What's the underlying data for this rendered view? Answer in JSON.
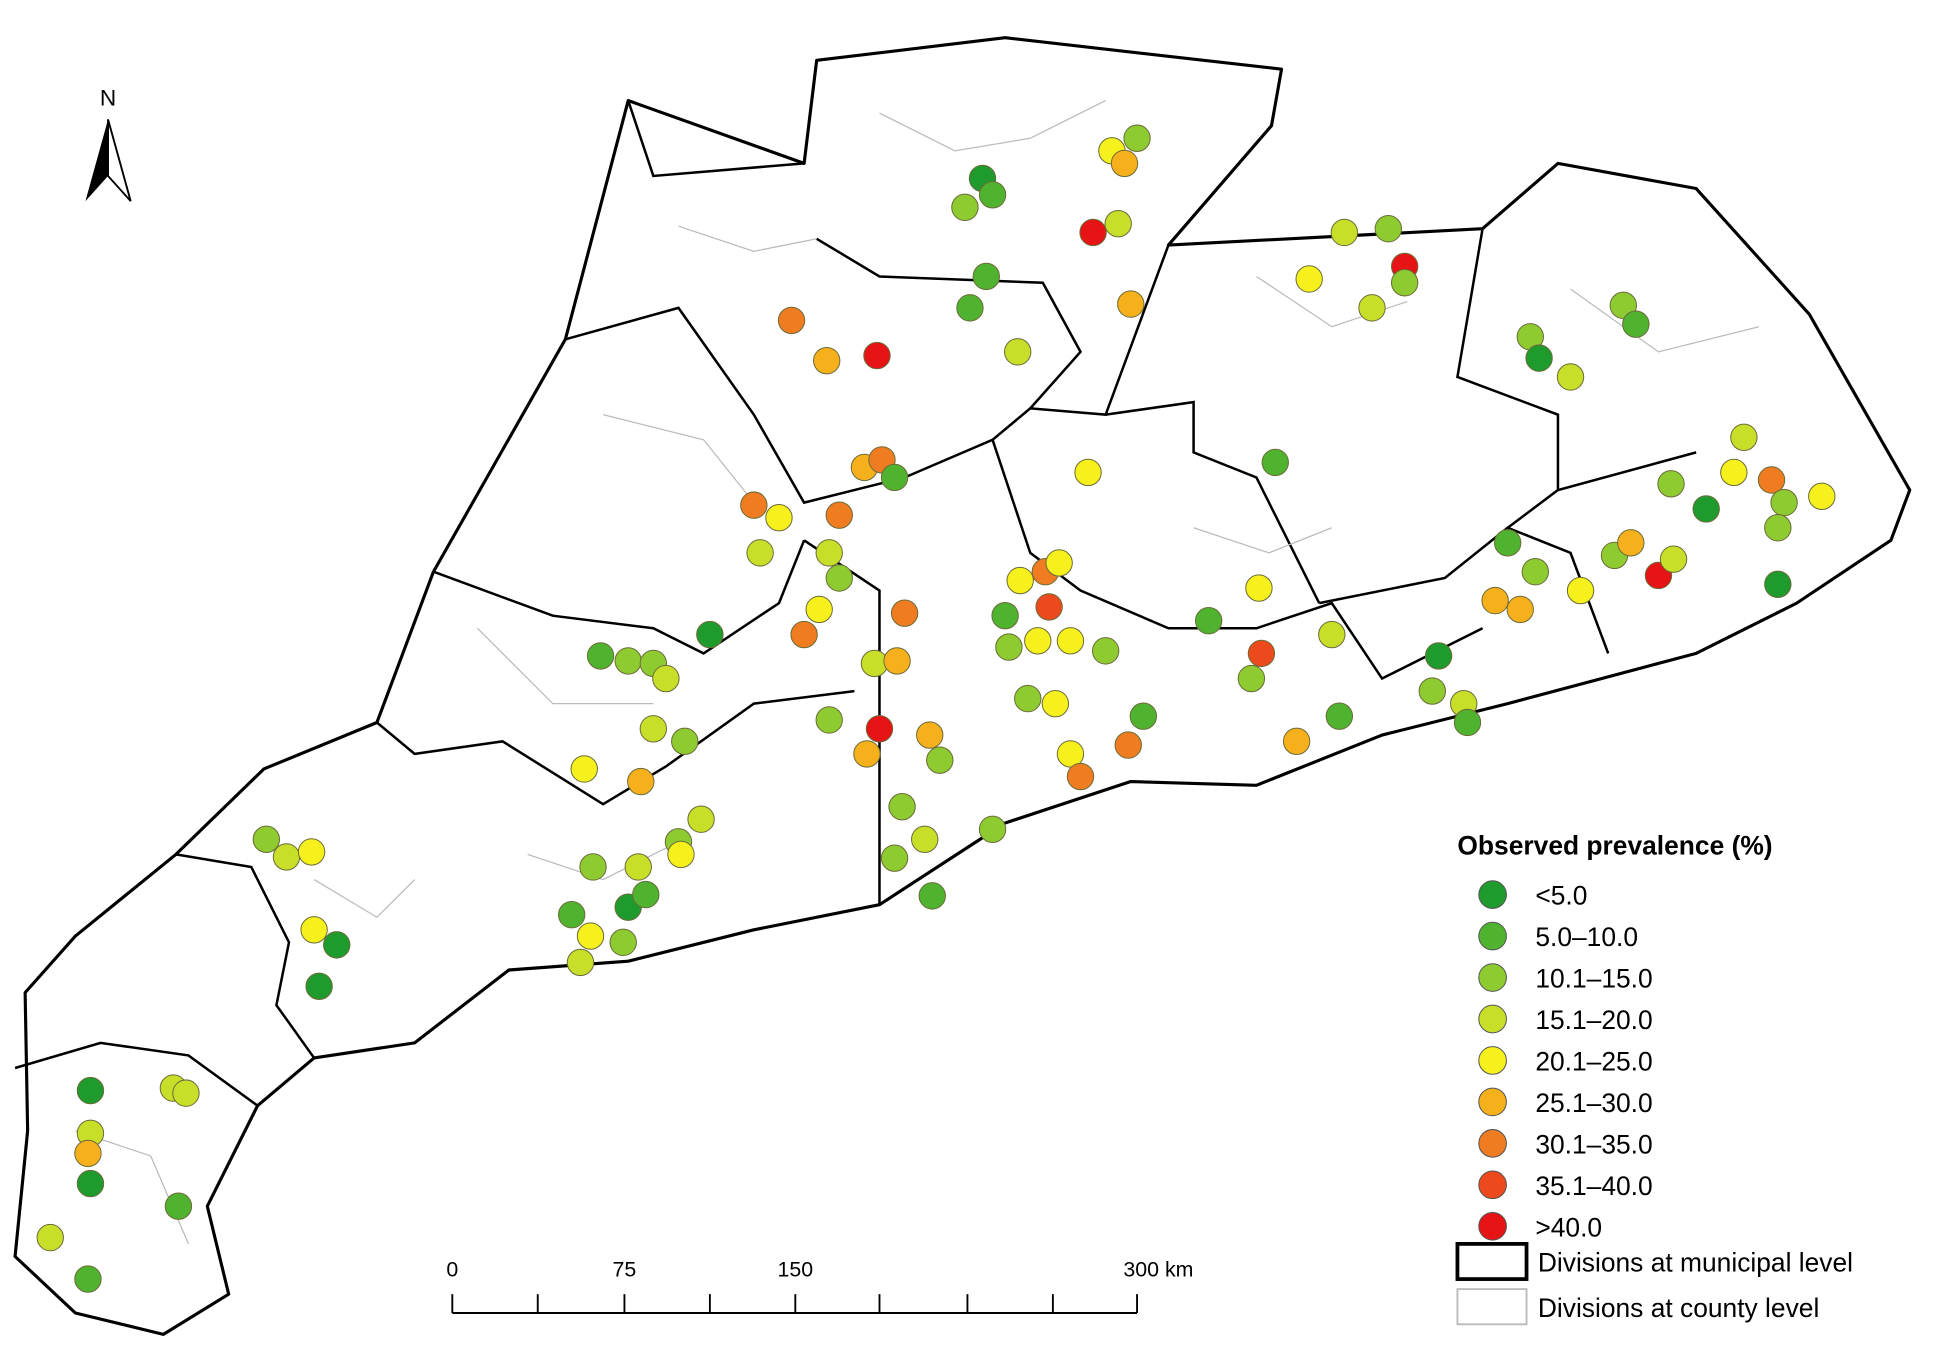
{
  "map": {
    "north": "N",
    "legend": {
      "title": "Observed prevalence (%)",
      "items": [
        {
          "label": "<5.0",
          "color": "#1f9a2c"
        },
        {
          "label": "5.0–10.0",
          "color": "#4fb32f"
        },
        {
          "label": "10.1–15.0",
          "color": "#8dcb30"
        },
        {
          "label": "15.1–20.0",
          "color": "#c8df2a"
        },
        {
          "label": "20.1–25.0",
          "color": "#f6f01c"
        },
        {
          "label": "25.1–30.0",
          "color": "#f6b01c"
        },
        {
          "label": "30.1–35.0",
          "color": "#ef7c20"
        },
        {
          "label": "35.1–40.0",
          "color": "#ec4a1c"
        },
        {
          "label": ">40.0",
          "color": "#e61414"
        }
      ],
      "municipal": "Divisions at municipal level",
      "county": "Divisions at county level"
    },
    "scale": [
      "0",
      "75",
      "150",
      "300 km"
    ]
  }
}
